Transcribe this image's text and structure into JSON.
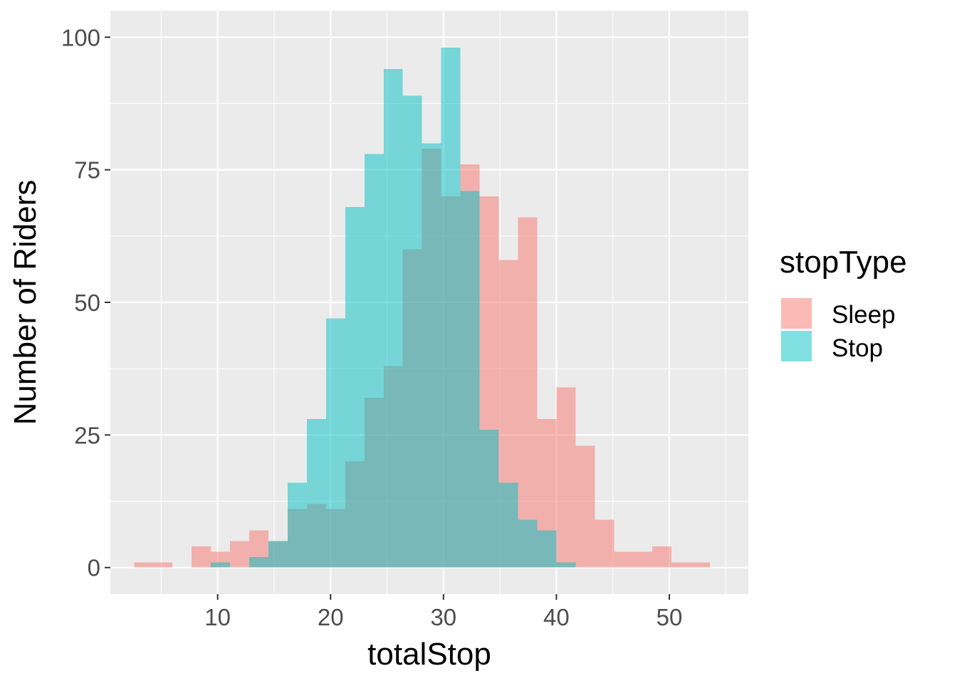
{
  "chart_data": {
    "type": "bar",
    "subtype": "overlapping-histogram",
    "title": "",
    "xlabel": "totalStop",
    "ylabel": "Number of Riders",
    "xlim": [
      0.5,
      57
    ],
    "ylim": [
      -5,
      105
    ],
    "x_ticks": [
      10,
      20,
      30,
      40,
      50
    ],
    "y_ticks": [
      0,
      25,
      50,
      75,
      100
    ],
    "bin_width": 1.7,
    "grid": true,
    "legend": {
      "title": "stopType",
      "placement": "right"
    },
    "series": [
      {
        "name": "Sleep",
        "color": "#F8766D",
        "bins": [
          {
            "x0": 2.6,
            "x1": 4.3,
            "count": 1
          },
          {
            "x0": 4.3,
            "x1": 6.0,
            "count": 1
          },
          {
            "x0": 6.0,
            "x1": 7.7,
            "count": 0
          },
          {
            "x0": 7.7,
            "x1": 9.4,
            "count": 4
          },
          {
            "x0": 9.4,
            "x1": 11.1,
            "count": 3
          },
          {
            "x0": 11.1,
            "x1": 12.8,
            "count": 5
          },
          {
            "x0": 12.8,
            "x1": 14.5,
            "count": 7
          },
          {
            "x0": 14.5,
            "x1": 16.2,
            "count": 5
          },
          {
            "x0": 16.2,
            "x1": 17.9,
            "count": 11
          },
          {
            "x0": 17.9,
            "x1": 19.6,
            "count": 12
          },
          {
            "x0": 19.6,
            "x1": 21.3,
            "count": 11
          },
          {
            "x0": 21.3,
            "x1": 23.0,
            "count": 20
          },
          {
            "x0": 23.0,
            "x1": 24.7,
            "count": 32
          },
          {
            "x0": 24.7,
            "x1": 26.4,
            "count": 38
          },
          {
            "x0": 26.4,
            "x1": 28.1,
            "count": 60
          },
          {
            "x0": 28.1,
            "x1": 29.8,
            "count": 79
          },
          {
            "x0": 29.8,
            "x1": 31.5,
            "count": 70
          },
          {
            "x0": 31.5,
            "x1": 33.2,
            "count": 76
          },
          {
            "x0": 33.2,
            "x1": 34.9,
            "count": 70
          },
          {
            "x0": 34.9,
            "x1": 36.6,
            "count": 58
          },
          {
            "x0": 36.6,
            "x1": 38.3,
            "count": 66
          },
          {
            "x0": 38.3,
            "x1": 40.0,
            "count": 28
          },
          {
            "x0": 40.0,
            "x1": 41.7,
            "count": 34
          },
          {
            "x0": 41.7,
            "x1": 43.4,
            "count": 23
          },
          {
            "x0": 43.4,
            "x1": 45.1,
            "count": 9
          },
          {
            "x0": 45.1,
            "x1": 46.8,
            "count": 3
          },
          {
            "x0": 46.8,
            "x1": 48.5,
            "count": 3
          },
          {
            "x0": 48.5,
            "x1": 50.2,
            "count": 4
          },
          {
            "x0": 50.2,
            "x1": 51.9,
            "count": 1
          },
          {
            "x0": 51.9,
            "x1": 53.6,
            "count": 1
          }
        ]
      },
      {
        "name": "Stop",
        "color": "#00BFC4",
        "bins": [
          {
            "x0": 9.4,
            "x1": 11.1,
            "count": 1
          },
          {
            "x0": 11.1,
            "x1": 12.8,
            "count": 0
          },
          {
            "x0": 12.8,
            "x1": 14.5,
            "count": 2
          },
          {
            "x0": 14.5,
            "x1": 16.2,
            "count": 5
          },
          {
            "x0": 16.2,
            "x1": 17.9,
            "count": 16
          },
          {
            "x0": 17.9,
            "x1": 19.6,
            "count": 28
          },
          {
            "x0": 19.6,
            "x1": 21.3,
            "count": 47
          },
          {
            "x0": 21.3,
            "x1": 23.0,
            "count": 68
          },
          {
            "x0": 23.0,
            "x1": 24.7,
            "count": 78
          },
          {
            "x0": 24.7,
            "x1": 26.4,
            "count": 94
          },
          {
            "x0": 26.4,
            "x1": 28.1,
            "count": 89
          },
          {
            "x0": 28.1,
            "x1": 29.8,
            "count": 80
          },
          {
            "x0": 29.8,
            "x1": 31.5,
            "count": 98
          },
          {
            "x0": 31.5,
            "x1": 33.2,
            "count": 71
          },
          {
            "x0": 33.2,
            "x1": 34.9,
            "count": 26
          },
          {
            "x0": 34.9,
            "x1": 36.6,
            "count": 16
          },
          {
            "x0": 36.6,
            "x1": 38.3,
            "count": 9
          },
          {
            "x0": 38.3,
            "x1": 40.0,
            "count": 7
          },
          {
            "x0": 40.0,
            "x1": 41.7,
            "count": 1
          }
        ]
      }
    ]
  }
}
